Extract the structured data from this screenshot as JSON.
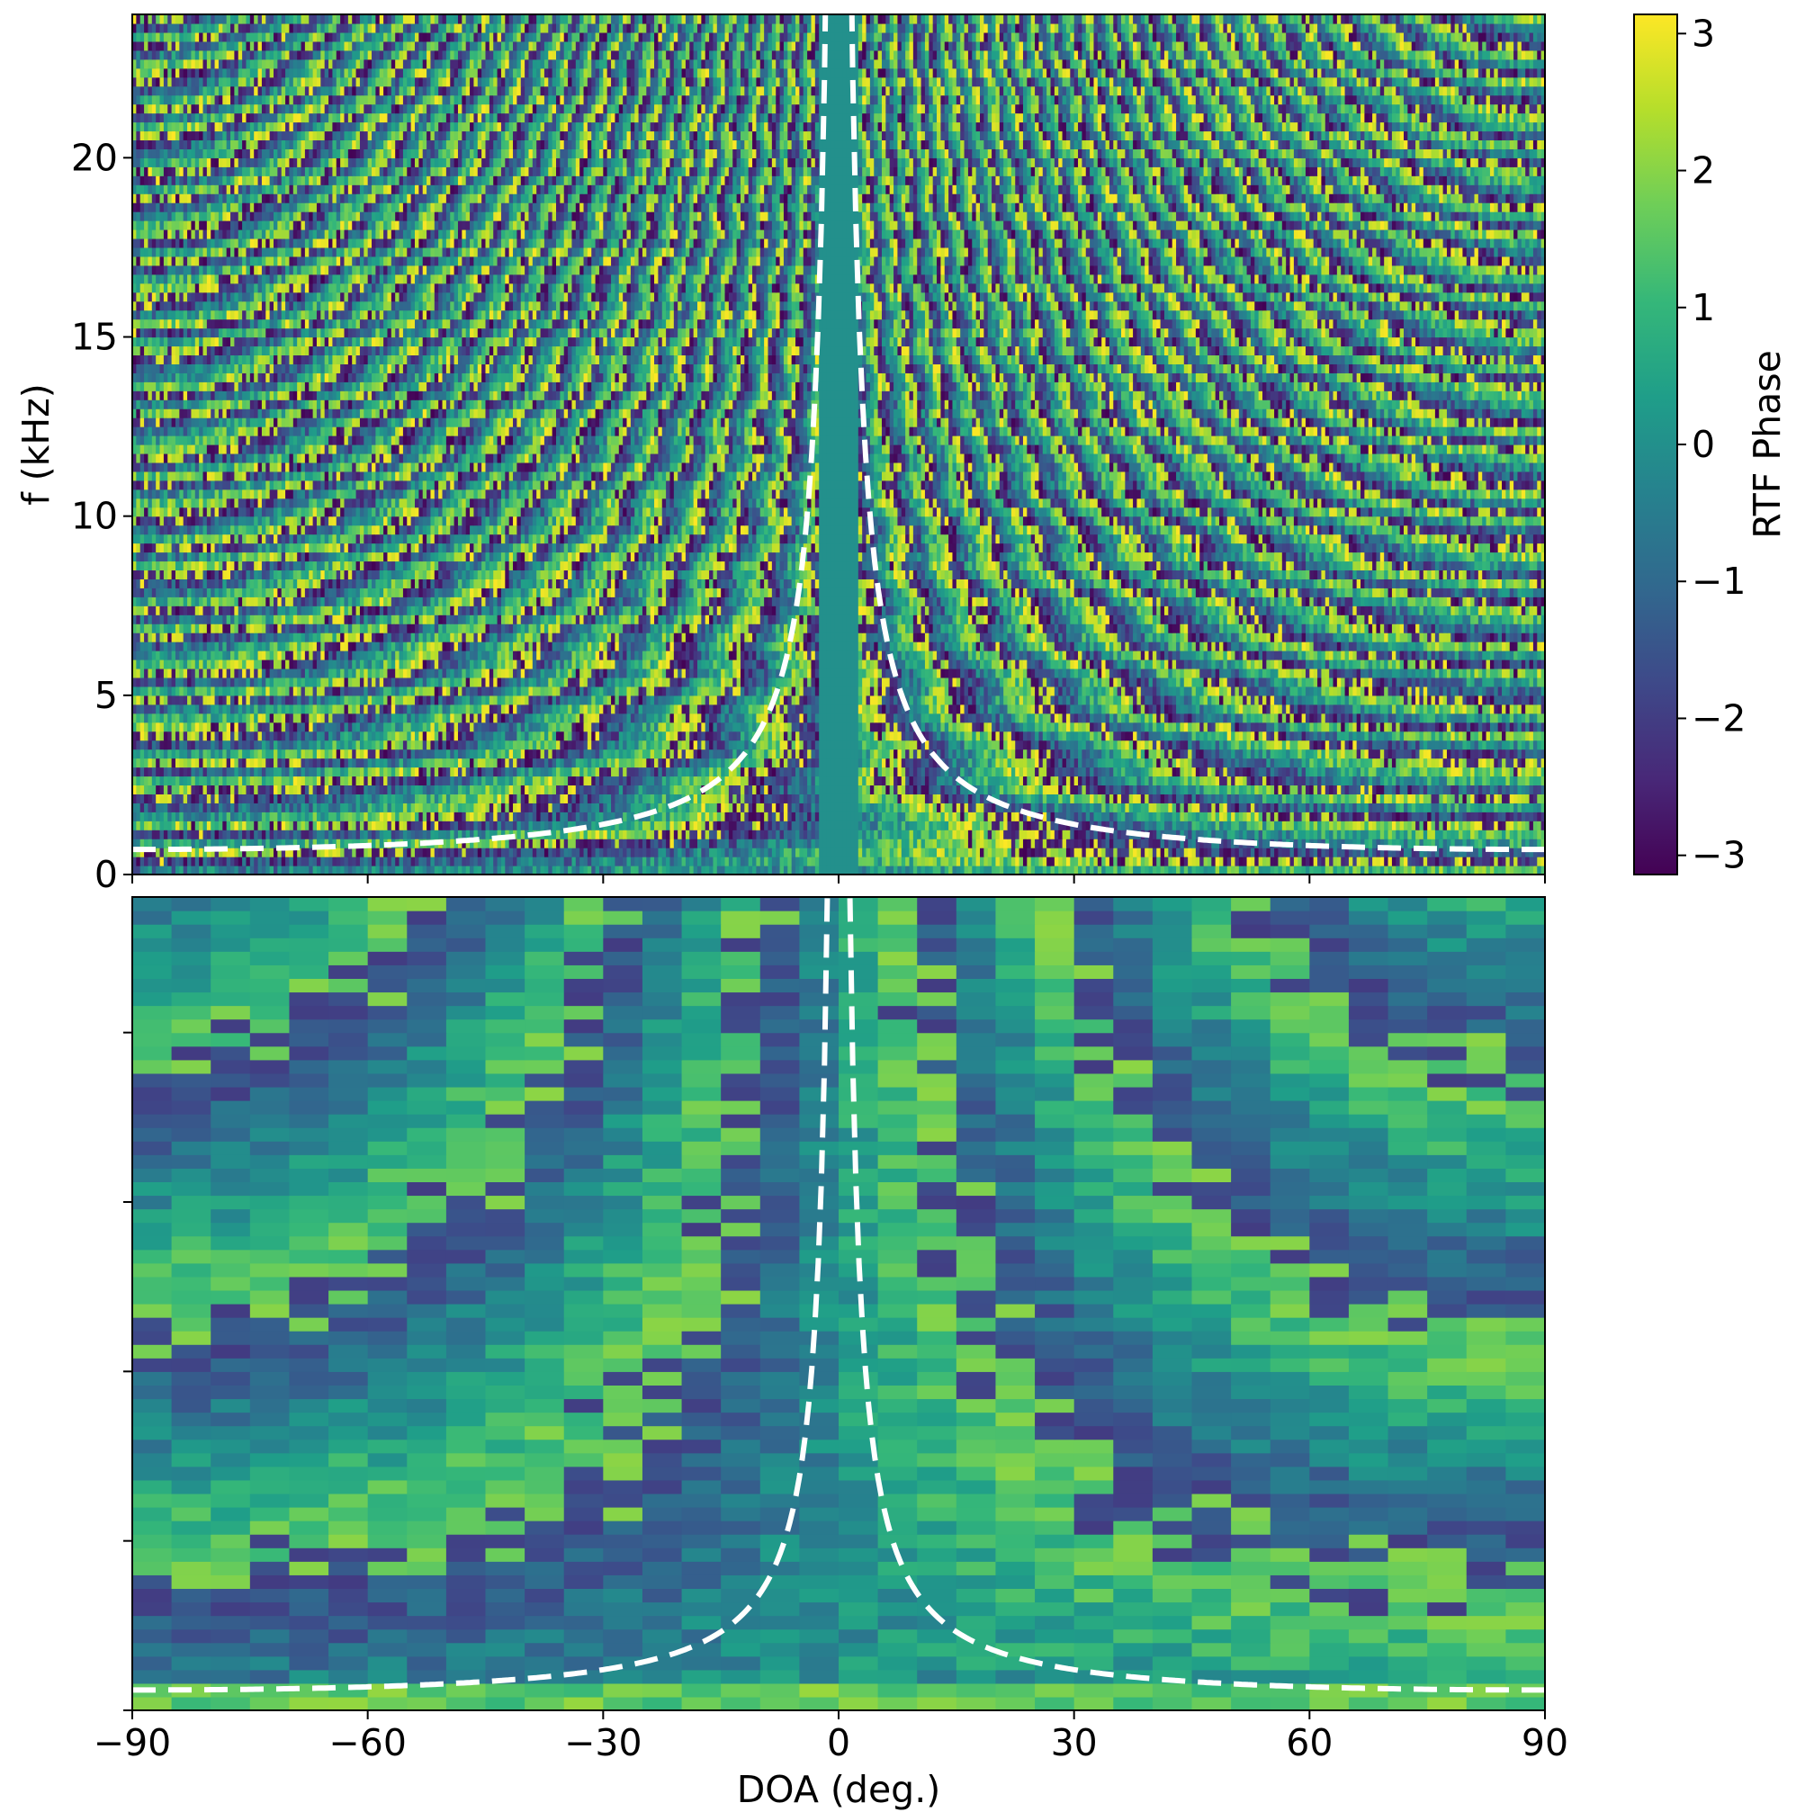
{
  "chart_data": [
    {
      "type": "heatmap",
      "panel": "top",
      "xlim": [
        -90,
        90
      ],
      "ylim": [
        0,
        24
      ],
      "ylabel": "f (kHz)",
      "xlabel": "",
      "y_ticks": [
        0,
        5,
        10,
        15,
        20
      ],
      "y_tick_labels": [
        "0",
        "5",
        "10",
        "15",
        "20"
      ],
      "x_ticks": [
        -90,
        -60,
        -30,
        0,
        30,
        60,
        90
      ],
      "x_tick_labels_shown": false,
      "colormap": "viridis",
      "value_range": [
        -3.14,
        3.14
      ],
      "cell_columns": 360,
      "cell_rows": 96,
      "overlay_curve": {
        "style": "dashed",
        "color": "#ffffff",
        "asymptote_doa": 0,
        "floor_f_khz": 0.7
      },
      "center_band_doa": [
        -2.5,
        2.5
      ]
    },
    {
      "type": "heatmap",
      "panel": "bottom",
      "xlim": [
        -90,
        90
      ],
      "xlabel": "DOA (deg.)",
      "ylabel": "",
      "x_ticks": [
        -90,
        -60,
        -30,
        0,
        30,
        60,
        90
      ],
      "x_tick_labels": [
        "−90",
        "−60",
        "−30",
        "0",
        "30",
        "60",
        "90"
      ],
      "y_tick_labels_shown": false,
      "colormap": "viridis",
      "value_range": [
        -3.14,
        3.14
      ],
      "cell_columns": 36,
      "cell_rows": 60,
      "overlay_curve": {
        "style": "dashed",
        "color": "#ffffff",
        "asymptote_doa": 0
      }
    }
  ],
  "colorbar": {
    "label": "RTF Phase",
    "range": [
      -3.14,
      3.14
    ],
    "ticks": [
      3,
      2,
      1,
      0,
      -1,
      -2,
      -3
    ],
    "tick_labels": [
      "3",
      "2",
      "1",
      "0",
      "−1",
      "−2",
      "−3"
    ]
  },
  "colors": {
    "viridis": [
      "#440154",
      "#482878",
      "#3e4989",
      "#31688e",
      "#26828e",
      "#1f9e89",
      "#35b779",
      "#6ece58",
      "#b5de2b",
      "#fde725"
    ],
    "curve": "#ffffff"
  }
}
